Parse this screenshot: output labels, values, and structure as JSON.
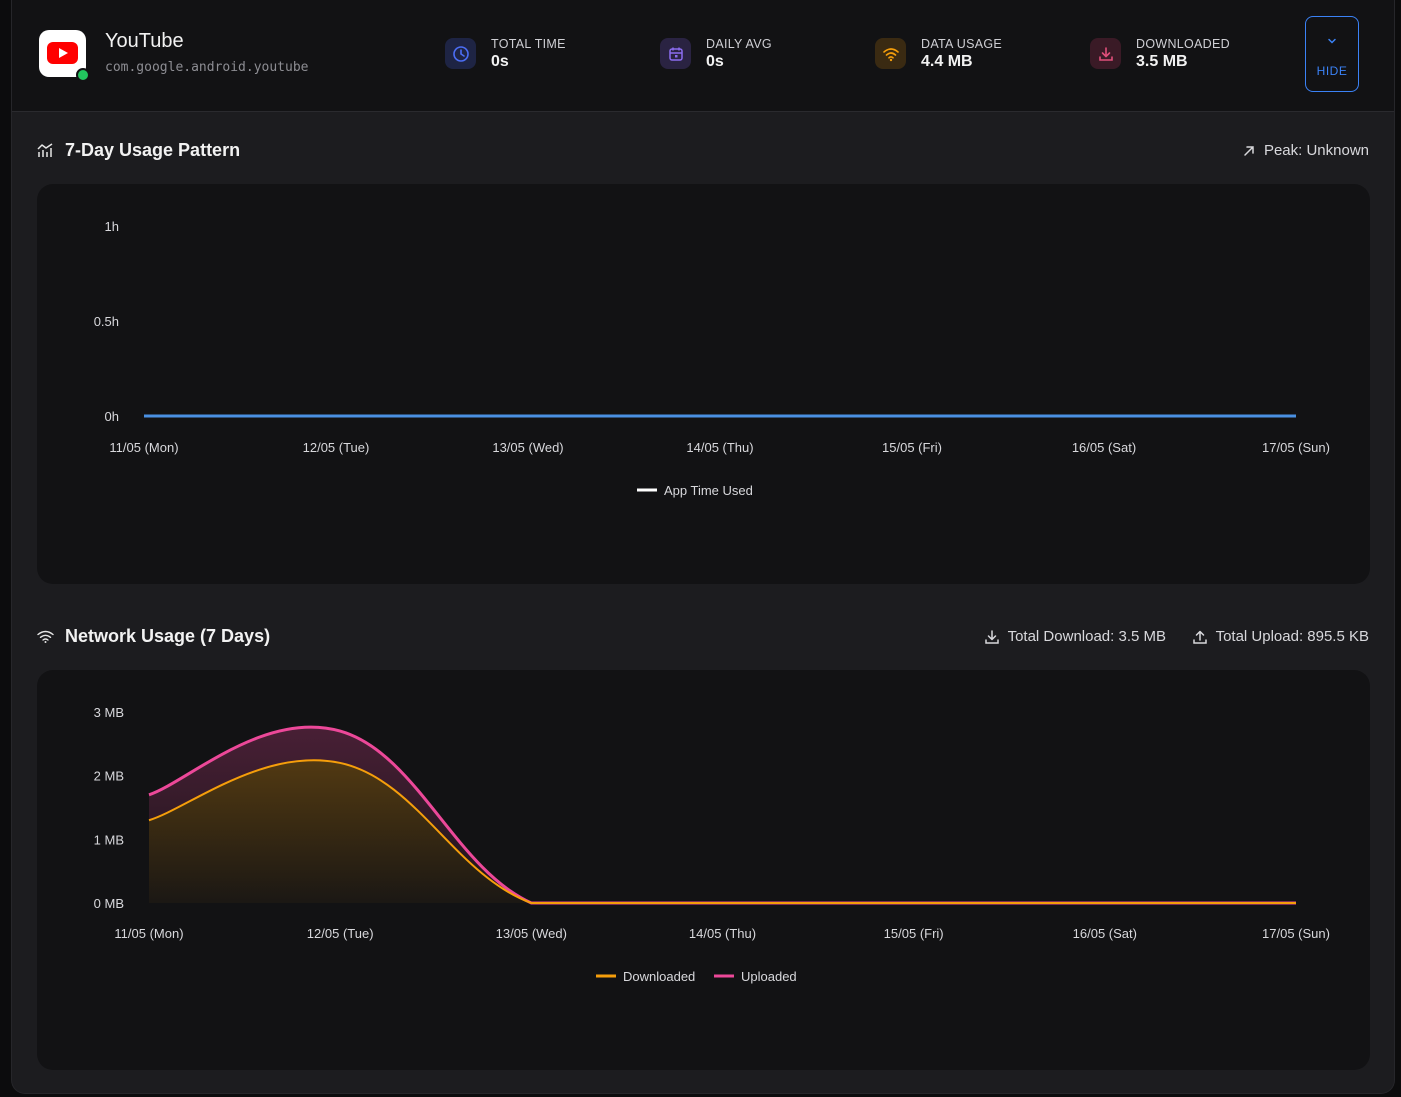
{
  "app": {
    "name": "YouTube",
    "package": "com.google.android.youtube",
    "icon": "youtube-logo-icon",
    "online": true
  },
  "stats": [
    {
      "label": "TOTAL TIME",
      "value": "0s",
      "icon": "clock-icon",
      "color": "#3b5bdb"
    },
    {
      "label": "DAILY AVG",
      "value": "0s",
      "icon": "calendar-icon",
      "color": "#7c5cd6"
    },
    {
      "label": "DATA USAGE",
      "value": "4.4 MB",
      "icon": "wifi-icon",
      "color": "#f59e0b"
    },
    {
      "label": "DOWNLOADED",
      "value": "3.5 MB",
      "icon": "download-icon",
      "color": "#e04f7a"
    }
  ],
  "hide_button": {
    "label": "HIDE",
    "icon": "chevron-down-icon"
  },
  "usage_section": {
    "title": "7-Day Usage Pattern",
    "icon": "trend-chart-icon",
    "peak_label": "Peak: Unknown",
    "peak_icon": "arrow-up-right-icon"
  },
  "network_section": {
    "title": "Network Usage (7 Days)",
    "icon": "wifi-icon",
    "total_download": "Total Download: 3.5 MB",
    "total_upload": "Total Upload: 895.5 KB"
  },
  "chart_data": [
    {
      "type": "line",
      "categories": [
        "11/05 (Mon)",
        "12/05 (Tue)",
        "13/05 (Wed)",
        "14/05 (Thu)",
        "15/05 (Fri)",
        "16/05 (Sat)",
        "17/05 (Sun)"
      ],
      "y_ticks": [
        "0h",
        "0.5h",
        "1h"
      ],
      "ylim": [
        0,
        1
      ],
      "series": [
        {
          "name": "App Time Used",
          "values": [
            0,
            0,
            0,
            0,
            0,
            0,
            0
          ],
          "color": "#4a90e2",
          "legend_color": "#ffffff"
        }
      ],
      "legend": "bottom",
      "grid": false
    },
    {
      "type": "area",
      "categories": [
        "11/05 (Mon)",
        "12/05 (Tue)",
        "13/05 (Wed)",
        "14/05 (Thu)",
        "15/05 (Fri)",
        "16/05 (Sat)",
        "17/05 (Sun)"
      ],
      "y_ticks": [
        "0 MB",
        "1 MB",
        "2 MB",
        "3 MB"
      ],
      "ylim": [
        0,
        3
      ],
      "series": [
        {
          "name": "Downloaded",
          "values": [
            1.3,
            2.2,
            0,
            0,
            0,
            0,
            0
          ],
          "color": "#f59e0b"
        },
        {
          "name": "Uploaded",
          "values": [
            0.4,
            0.5,
            0,
            0,
            0,
            0,
            0
          ],
          "color": "#ec4899"
        }
      ],
      "stacked": true,
      "legend": "bottom",
      "grid": false
    }
  ]
}
